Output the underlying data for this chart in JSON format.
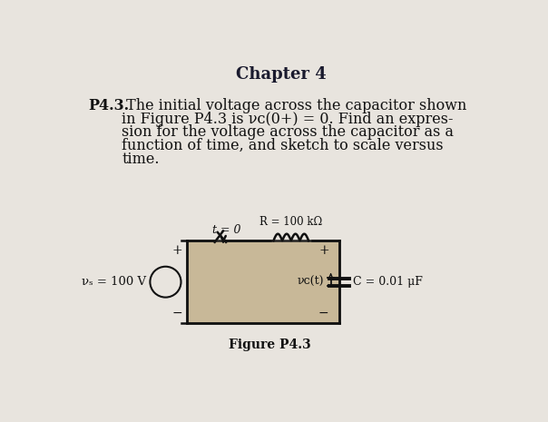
{
  "title": "Chapter 4",
  "bg_color": "#e8e4de",
  "bg_color_dark": "#d0c8bc",
  "problem_label": "P4.3.",
  "line1": " The initial voltage across the capacitor shown",
  "line2": "in Figure P4.3 is νᴄ(0+) = 0. Find an expres-",
  "line3": "sion for the voltage across the capacitor as a",
  "line4": "function of time, and sketch to scale versus",
  "line5": "time.",
  "figure_label": "Figure P4.3",
  "vs_label": "νₛ = 100 V",
  "R_label": "R = 100 kΩ",
  "C_label": "C = 0.01 μF",
  "vc_label": "νᴄ(t)",
  "t0_label": "t = 0"
}
